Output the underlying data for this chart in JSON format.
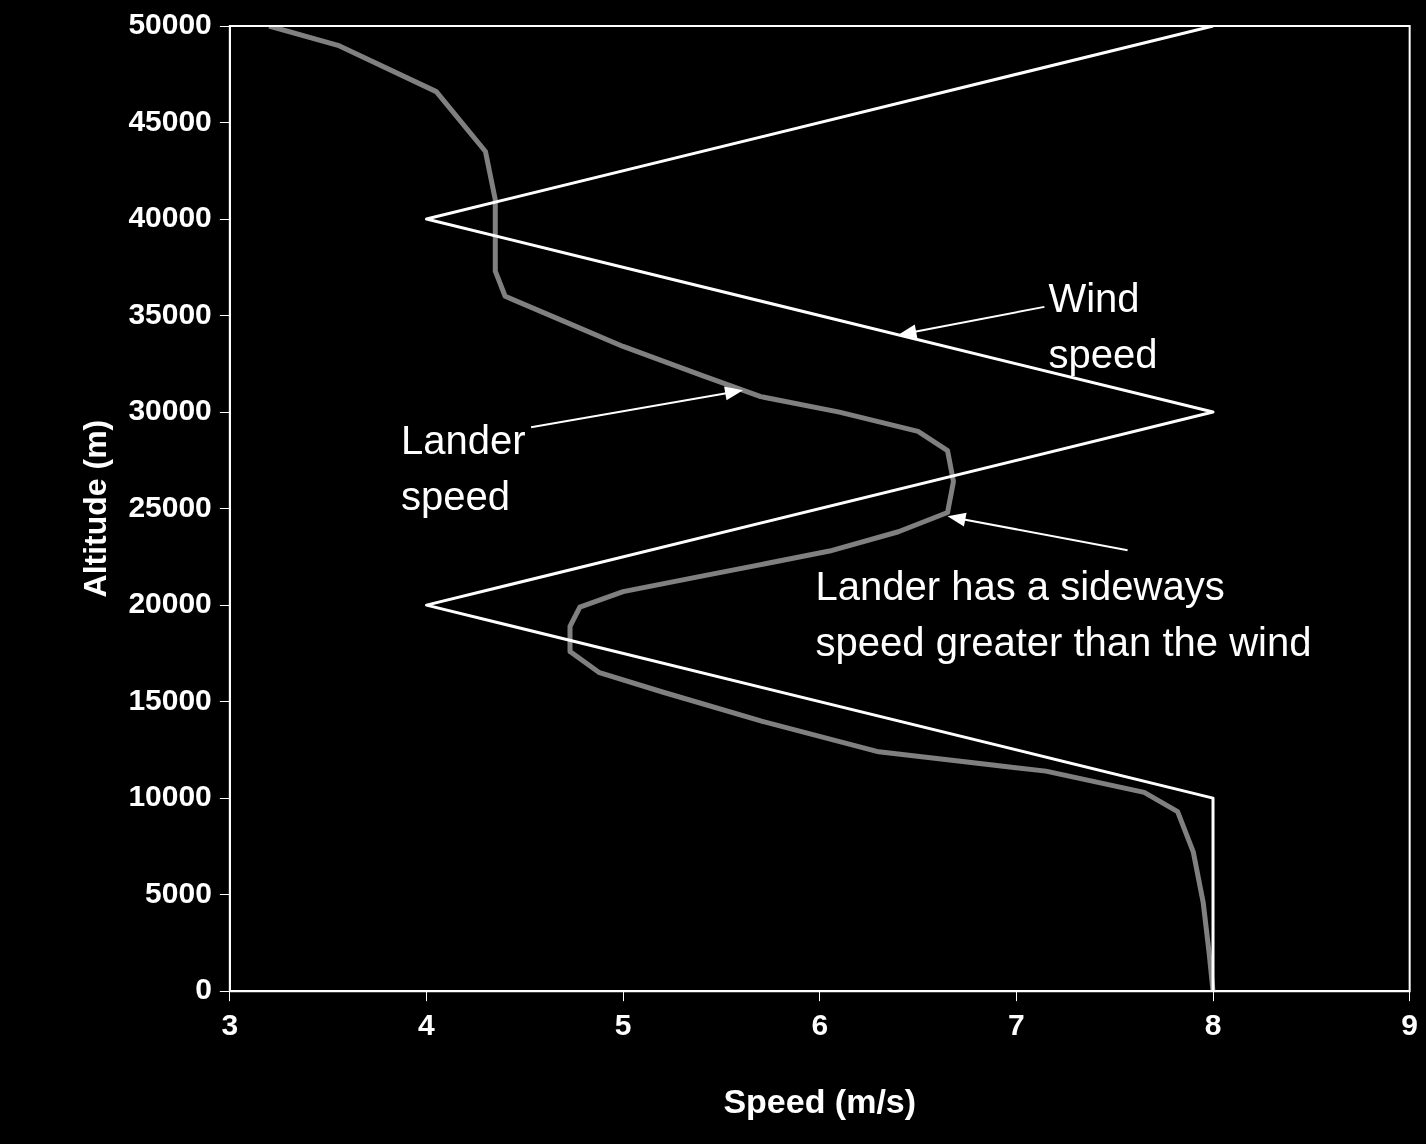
{
  "chart_data": {
    "type": "line",
    "xlabel": "Speed (m/s)",
    "ylabel": "Altitude (m)",
    "xlim": [
      3,
      9
    ],
    "xticks": [
      3,
      4,
      5,
      6,
      7,
      8,
      9
    ],
    "ylim": [
      0,
      50000
    ],
    "yticks": [
      0,
      5000,
      10000,
      15000,
      20000,
      25000,
      30000,
      35000,
      40000,
      45000,
      50000
    ],
    "grid": false,
    "marker": "none",
    "line_style": "solid",
    "series": [
      {
        "color": "#ffffff",
        "x": [
          8,
          8,
          4,
          8,
          4,
          8
        ],
        "values": [
          0,
          10000,
          20000,
          30000,
          40000,
          50000
        ]
      },
      {
        "color": "#808080",
        "x": [
          3.2,
          3.55,
          4.05,
          4.3,
          4.35,
          4.35,
          4.4,
          4.7,
          5,
          5.4,
          5.7,
          6.1,
          6.5,
          6.65,
          6.68,
          6.65,
          6.4,
          6.05,
          5.4,
          5,
          4.78,
          4.73,
          4.73,
          4.88,
          5.2,
          5.7,
          6.3,
          7.15,
          7.65,
          7.82,
          7.9,
          7.95,
          7.98,
          8
        ],
        "values": [
          50000,
          49000,
          46600,
          43500,
          41000,
          37300,
          36000,
          34700,
          33400,
          31900,
          30800,
          30000,
          29000,
          28000,
          26400,
          24800,
          23800,
          22800,
          21500,
          20700,
          19900,
          18900,
          17600,
          16500,
          15500,
          14000,
          12400,
          11400,
          10300,
          9300,
          7200,
          4600,
          2000,
          0
        ]
      }
    ],
    "annotations": [
      "Wind speed",
      "Lander speed",
      {
        "text": "Lander has a sideways speed greater than the wind",
        "x": 6.65,
        "y": 24600
      }
    ]
  }
}
